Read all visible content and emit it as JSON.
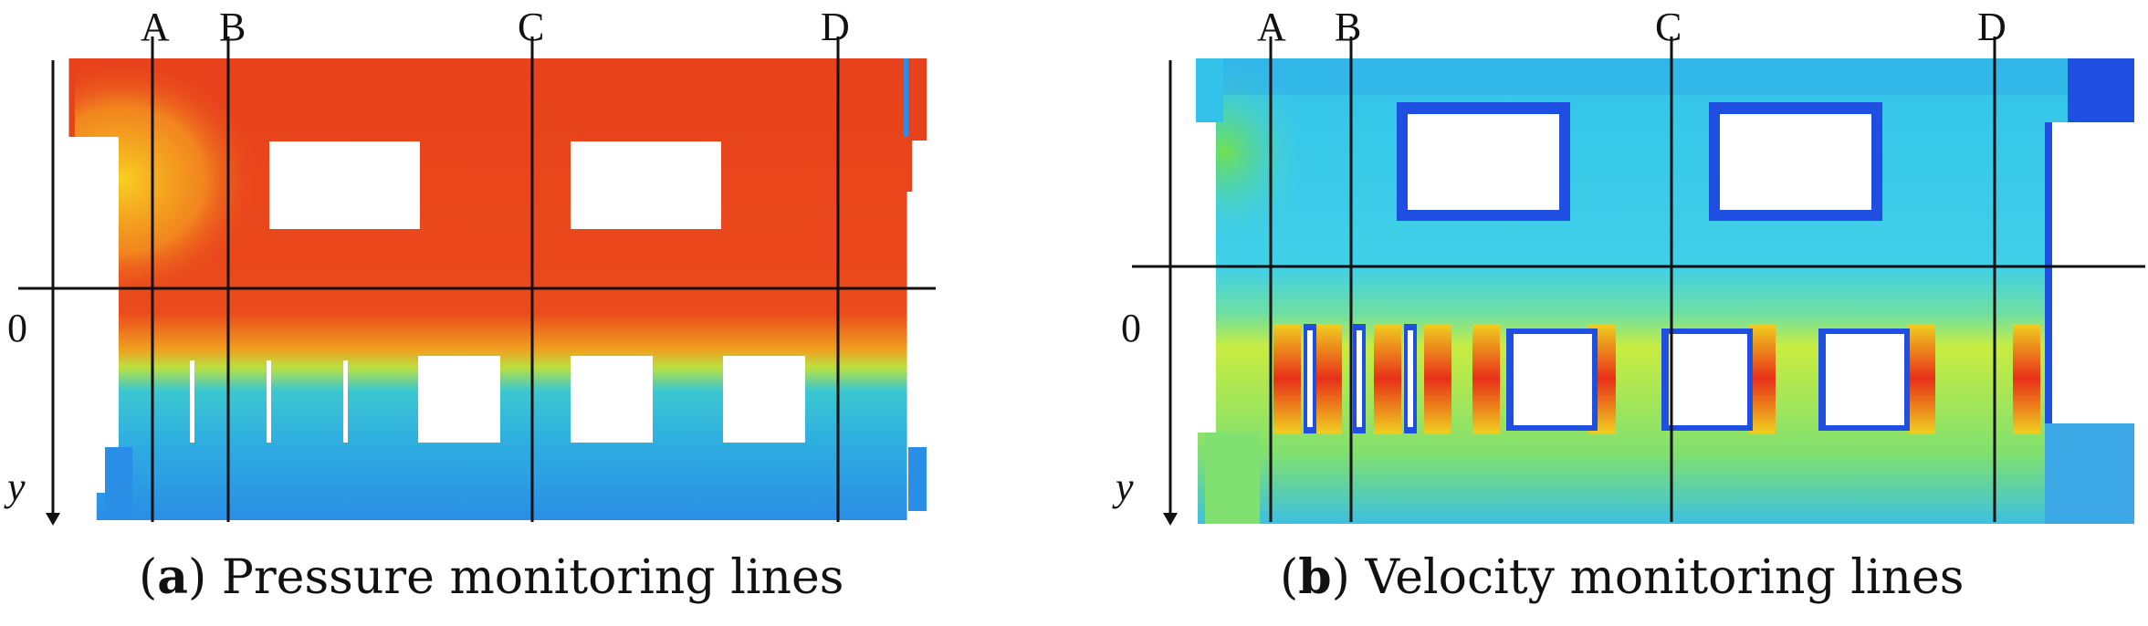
{
  "panels": [
    {
      "id": "a",
      "caption_letter": "a",
      "caption_text": "Pressure monitoring lines",
      "line_labels": [
        "A",
        "B",
        "C",
        "D"
      ],
      "axis_origin_label": "0",
      "axis_y_label": "y",
      "field": "pressure"
    },
    {
      "id": "b",
      "caption_letter": "b",
      "caption_text": "Velocity monitoring lines",
      "line_labels": [
        "A",
        "B",
        "C",
        "D"
      ],
      "axis_origin_label": "0",
      "axis_y_label": "y",
      "field": "velocity"
    }
  ],
  "colors": {
    "pressure_high": "#e8421c",
    "pressure_mid": "#f6c020",
    "pressure_low": "#2fb9d8",
    "velocity_low": "#1e4fe0",
    "velocity_mid": "#29c8e8",
    "velocity_high": "#e83018",
    "line": "#111111"
  }
}
